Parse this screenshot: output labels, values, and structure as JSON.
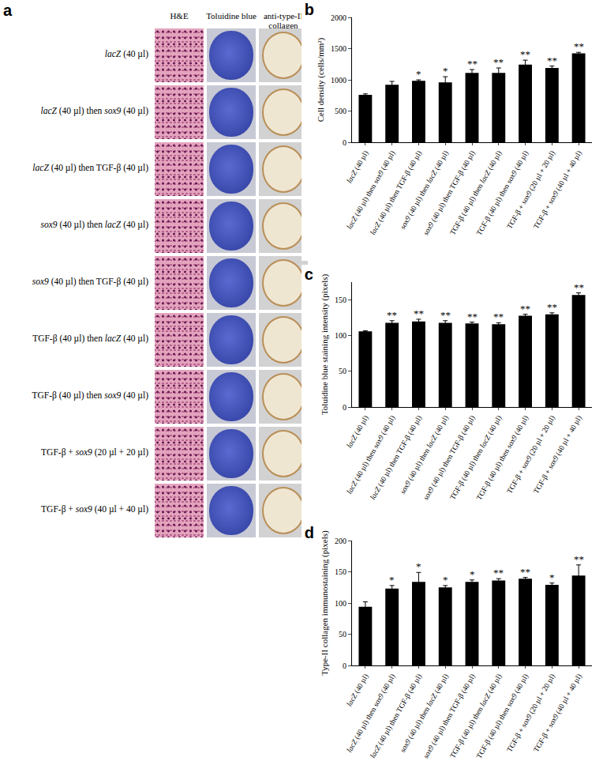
{
  "image_panel": {
    "label": "a",
    "columns": [
      "H&E",
      "Toluidine blue",
      "anti-type-II collagen"
    ],
    "rows": [
      "lacZ (40 µl)",
      "lacZ (40 µl) then sox9 (40 µl)",
      "lacZ (40 µl) then TGF-β (40 µl)",
      "sox9 (40 µl) then lacZ (40 µl)",
      "sox9 (40 µl) then TGF-β (40 µl)",
      "TGF-β (40 µl) then lacZ (40 µl)",
      "TGF-β (40 µl) then sox9 (40 µl)",
      "TGF-β + sox9 (20 µl + 20 µl)",
      "TGF-β + sox9 (40 µl + 40 µl)"
    ]
  },
  "chart_data": [
    {
      "type": "bar",
      "title": "b",
      "y_label": "Cell density (cells/mm²)",
      "categories": [
        "lacZ (40 µl)",
        "lacZ (40 µl) then sox9 (40 µl)",
        "lacZ (40 µl) then TGF-β (40 µl)",
        "sox9 (40 µl) then lacZ (40 µl)",
        "sox9 (40 µl) then TGF-β (40 µl)",
        "TGF-β (40 µl) then lacZ (40 µl)",
        "TGF-β (40 µl) then sox9 (40 µl)",
        "TGF-β + sox9 (20 µl + 20 µl)",
        "TGF-β + sox9 (40 µl + 40 µl)"
      ],
      "values": [
        760,
        920,
        985,
        960,
        1110,
        1110,
        1245,
        1190,
        1425
      ],
      "errors": [
        15,
        55,
        15,
        90,
        55,
        80,
        70,
        30,
        15
      ],
      "significance": [
        null,
        null,
        "*",
        "*",
        "**",
        "**",
        "**",
        "**",
        "**"
      ],
      "color": "#000000",
      "ylim": [
        0,
        2000
      ],
      "yticks": [
        0,
        500,
        1000,
        1500,
        2000
      ],
      "grid": false
    },
    {
      "type": "bar",
      "title": "c",
      "y_label": "Toluidine blue staining intensity (pixels)",
      "categories": [
        "lacZ (40 µl)",
        "lacZ (40 µl) then sox9 (40 µl)",
        "lacZ (40 µl) then TGF-β (40 µl)",
        "sox9 (40 µl) then lacZ (40 µl)",
        "sox9 (40 µl) then TGF-β (40 µl)",
        "TGF-β (40 µl) then lacZ (40 µl)",
        "TGF-β (40 µl) then sox9 (40 µl)",
        "TGF-β + sox9 (20 µl + 20 µl)",
        "TGF-β + sox9 (40 µl + 40 µl)"
      ],
      "values": [
        106,
        118,
        120,
        118,
        117,
        116,
        128,
        130,
        157
      ],
      "errors": [
        1,
        3,
        3,
        3,
        2,
        2,
        2,
        2,
        3
      ],
      "significance": [
        null,
        "**",
        "**",
        "**",
        "**",
        "**",
        "**",
        "**",
        "**"
      ],
      "color": "#000000",
      "ylim": [
        0,
        175
      ],
      "yticks": [
        0,
        50,
        100,
        150
      ],
      "grid": false
    },
    {
      "type": "bar",
      "title": "d",
      "y_label": "Type-II collagen immunostaining (pixels)",
      "categories": [
        "lacZ (40 µl)",
        "lacZ (40 µl) then sox9 (40 µl)",
        "lacZ (40 µl) then TGF-β (40 µl)",
        "sox9 (40 µl) then lacZ (40 µl)",
        "sox9 (40 µl) then TGF-β (40 µl)",
        "TGF-β (40 µl) then lacZ (40 µl)",
        "TGF-β (40 µl) then sox9 (40 µl)",
        "TGF-β + sox9 (20 µl + 20 µl)",
        "TGF-β + sox9 (40 µl + 40 µl)"
      ],
      "values": [
        94,
        123,
        134,
        125,
        134,
        136,
        139,
        129,
        144
      ],
      "errors": [
        8,
        5,
        15,
        3,
        3,
        3,
        2,
        3,
        17
      ],
      "significance": [
        null,
        "*",
        "*",
        "*",
        "*",
        "**",
        "**",
        "*",
        "**"
      ],
      "color": "#000000",
      "ylim": [
        0,
        200
      ],
      "yticks": [
        0,
        50,
        100,
        150,
        200
      ],
      "grid": false
    }
  ]
}
